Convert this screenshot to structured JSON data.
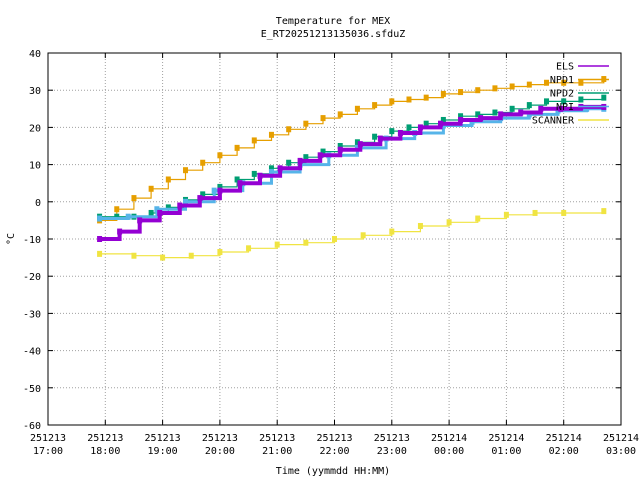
{
  "chart_data": {
    "type": "line",
    "title": "Temperature for MEX",
    "subtitle": "E_RT20251213135036.sfduZ",
    "xlabel": "Time (yymmdd HH:MM)",
    "ylabel": "°C",
    "ylim": [
      -60,
      40
    ],
    "yticks": [
      -60,
      -50,
      -40,
      -30,
      -20,
      -10,
      0,
      10,
      20,
      30,
      40
    ],
    "xlim": [
      17,
      27
    ],
    "xticks": [
      {
        "x": 17,
        "date": "251213",
        "time": "17:00"
      },
      {
        "x": 18,
        "date": "251213",
        "time": "18:00"
      },
      {
        "x": 19,
        "date": "251213",
        "time": "19:00"
      },
      {
        "x": 20,
        "date": "251213",
        "time": "20:00"
      },
      {
        "x": 21,
        "date": "251213",
        "time": "21:00"
      },
      {
        "x": 22,
        "date": "251213",
        "time": "22:00"
      },
      {
        "x": 23,
        "date": "251213",
        "time": "23:00"
      },
      {
        "x": 24,
        "date": "251214",
        "time": "00:00"
      },
      {
        "x": 25,
        "date": "251214",
        "time": "01:00"
      },
      {
        "x": 26,
        "date": "251214",
        "time": "02:00"
      },
      {
        "x": 27,
        "date": "251214",
        "time": "03:00"
      }
    ],
    "grid": true,
    "legend_position": "top-right",
    "series": [
      {
        "name": "ELS",
        "color": "#9400d3",
        "x": [
          17.9,
          18.25,
          18.6,
          18.95,
          19.3,
          19.65,
          20.0,
          20.35,
          20.7,
          21.05,
          21.4,
          21.75,
          22.1,
          22.45,
          22.8,
          23.15,
          23.5,
          23.85,
          24.2,
          24.55,
          24.9,
          25.25,
          25.6,
          25.95,
          26.3,
          26.7
        ],
        "y": [
          -10,
          -8,
          -5,
          -3,
          -1,
          1,
          3,
          5,
          7,
          9,
          11,
          12.5,
          14,
          15.5,
          17,
          18.5,
          20,
          21,
          22,
          22.5,
          23.5,
          24,
          25,
          25,
          25.5,
          25.5
        ]
      },
      {
        "name": "NPD1",
        "color": "#e69f00",
        "x": [
          17.9,
          18.2,
          18.5,
          18.8,
          19.1,
          19.4,
          19.7,
          20.0,
          20.3,
          20.6,
          20.9,
          21.2,
          21.5,
          21.8,
          22.1,
          22.4,
          22.7,
          23.0,
          23.3,
          23.6,
          23.9,
          24.2,
          24.5,
          24.8,
          25.1,
          25.4,
          25.7,
          26.0,
          26.3,
          26.7
        ],
        "y": [
          -5,
          -2,
          1,
          3.5,
          6,
          8.5,
          10.5,
          12.5,
          14.5,
          16.5,
          18,
          19.5,
          21,
          22.5,
          23.5,
          25,
          26,
          27,
          27.5,
          28,
          29,
          29.5,
          30,
          30.5,
          31,
          31.5,
          32,
          32,
          32,
          33
        ]
      },
      {
        "name": "NPD2",
        "color": "#009e73",
        "x": [
          17.9,
          18.2,
          18.5,
          18.8,
          19.1,
          19.4,
          19.7,
          20.0,
          20.3,
          20.6,
          20.9,
          21.2,
          21.5,
          21.8,
          22.1,
          22.4,
          22.7,
          23.0,
          23.3,
          23.6,
          23.9,
          24.2,
          24.5,
          24.8,
          25.1,
          25.4,
          25.7,
          26.0,
          26.3,
          26.7
        ],
        "y": [
          -4,
          -4,
          -4,
          -3,
          -1.5,
          0.5,
          2,
          4,
          6,
          7.5,
          9,
          10.5,
          12,
          13.5,
          15,
          16,
          17.5,
          19,
          20,
          21,
          22,
          23,
          23.5,
          24,
          25,
          26,
          27,
          27,
          27.5,
          28
        ]
      },
      {
        "name": "NPI",
        "color": "#56b4e9",
        "x": [
          17.9,
          18.4,
          18.9,
          19.4,
          19.9,
          20.4,
          20.9,
          21.4,
          21.9,
          22.4,
          22.9,
          23.4,
          23.9,
          24.4,
          24.9,
          25.4,
          25.9,
          26.4,
          26.7
        ],
        "y": [
          -4.5,
          -4,
          -2,
          0,
          3,
          5,
          8,
          10,
          12.5,
          14.5,
          17,
          18.5,
          20.5,
          21.5,
          22.5,
          23.5,
          24.5,
          25,
          25
        ]
      },
      {
        "name": "SCANNER",
        "color": "#f0e442",
        "x": [
          17.9,
          18.5,
          19.0,
          19.5,
          20.0,
          20.5,
          21.0,
          21.5,
          22.0,
          22.5,
          23.0,
          23.5,
          24.0,
          24.5,
          25.0,
          25.5,
          26.0,
          26.7
        ],
        "y": [
          -14,
          -14.5,
          -15,
          -14.5,
          -13.5,
          -12.5,
          -11.5,
          -11,
          -10,
          -9,
          -8,
          -6.5,
          -5.5,
          -4.5,
          -3.5,
          -3,
          -3,
          -2.5
        ]
      }
    ]
  }
}
